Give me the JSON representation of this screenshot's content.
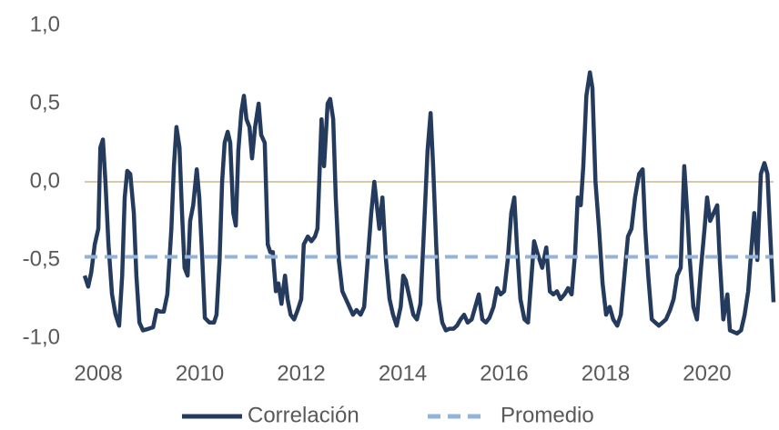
{
  "chart_data": {
    "type": "line",
    "xlim": [
      2007.73,
      2021.31
    ],
    "xticks": [
      2008,
      2010,
      2012,
      2014,
      2016,
      2018,
      2020
    ],
    "ylim": [
      -1,
      1
    ],
    "yticks": [
      {
        "value": -1,
        "label": "-1,0"
      },
      {
        "value": -0.5,
        "label": "-0,5"
      },
      {
        "value": 0,
        "label": "0,0"
      },
      {
        "value": 0.5,
        "label": "0,5"
      },
      {
        "value": 1,
        "label": "1,0"
      }
    ],
    "grid": false,
    "zero_line_color": "#c8b98c",
    "legend": "bottom",
    "series": [
      {
        "name": "Correlación",
        "color": "#243b5e",
        "dashed": false,
        "x": [
          2007.73,
          2007.8,
          2007.86,
          2007.93,
          2008.0,
          2008.04,
          2008.09,
          2008.14,
          2008.2,
          2008.27,
          2008.34,
          2008.41,
          2008.47,
          2008.52,
          2008.57,
          2008.63,
          2008.7,
          2008.75,
          2008.81,
          2008.88,
          2008.99,
          2009.08,
          2009.15,
          2009.22,
          2009.29,
          2009.36,
          2009.44,
          2009.49,
          2009.54,
          2009.6,
          2009.65,
          2009.7,
          2009.76,
          2009.81,
          2009.87,
          2009.94,
          2009.99,
          2010.05,
          2010.1,
          2010.19,
          2010.28,
          2010.33,
          2010.39,
          2010.44,
          2010.49,
          2010.55,
          2010.6,
          2010.66,
          2010.71,
          2010.76,
          2010.82,
          2010.87,
          2010.92,
          2010.98,
          2011.03,
          2011.09,
          2011.16,
          2011.21,
          2011.28,
          2011.34,
          2011.39,
          2011.44,
          2011.5,
          2011.55,
          2011.61,
          2011.68,
          2011.73,
          2011.79,
          2011.86,
          2011.93,
          2012.0,
          2012.05,
          2012.13,
          2012.2,
          2012.27,
          2012.32,
          2012.4,
          2012.45,
          2012.52,
          2012.57,
          2012.63,
          2012.68,
          2012.74,
          2012.81,
          2012.88,
          2012.95,
          2013.02,
          2013.09,
          2013.17,
          2013.24,
          2013.31,
          2013.38,
          2013.44,
          2013.49,
          2013.54,
          2013.6,
          2013.67,
          2013.74,
          2013.81,
          2013.88,
          2013.96,
          2014.01,
          2014.06,
          2014.14,
          2014.21,
          2014.28,
          2014.35,
          2014.42,
          2014.49,
          2014.55,
          2014.6,
          2014.66,
          2014.71,
          2014.78,
          2014.85,
          2014.92,
          2015.0,
          2015.07,
          2015.14,
          2015.21,
          2015.28,
          2015.36,
          2015.43,
          2015.5,
          2015.57,
          2015.64,
          2015.71,
          2015.79,
          2015.86,
          2015.93,
          2016.0,
          2016.07,
          2016.14,
          2016.2,
          2016.25,
          2016.32,
          2016.4,
          2016.47,
          2016.54,
          2016.59,
          2016.65,
          2016.7,
          2016.75,
          2016.83,
          2016.9,
          2016.97,
          2017.04,
          2017.11,
          2017.19,
          2017.26,
          2017.33,
          2017.4,
          2017.45,
          2017.51,
          2017.56,
          2017.62,
          2017.69,
          2017.74,
          2017.8,
          2017.87,
          2017.94,
          2018.01,
          2018.08,
          2018.15,
          2018.23,
          2018.3,
          2018.37,
          2018.44,
          2018.51,
          2018.58,
          2018.66,
          2018.73,
          2018.78,
          2018.84,
          2018.91,
          2018.98,
          2019.05,
          2019.12,
          2019.19,
          2019.27,
          2019.34,
          2019.41,
          2019.48,
          2019.55,
          2019.61,
          2019.66,
          2019.73,
          2019.8,
          2019.88,
          2019.95,
          2020.0,
          2020.06,
          2020.13,
          2020.2,
          2020.25,
          2020.32,
          2020.4,
          2020.45,
          2020.52,
          2020.59,
          2020.67,
          2020.74,
          2020.81,
          2020.88,
          2020.93,
          2020.99,
          2021.06,
          2021.13,
          2021.19,
          2021.24,
          2021.31
        ],
        "values": [
          -0.6,
          -0.67,
          -0.58,
          -0.4,
          -0.3,
          0.22,
          0.27,
          0.0,
          -0.4,
          -0.72,
          -0.85,
          -0.92,
          -0.6,
          -0.1,
          0.07,
          0.05,
          -0.2,
          -0.6,
          -0.9,
          -0.95,
          -0.94,
          -0.93,
          -0.82,
          -0.83,
          -0.83,
          -0.72,
          -0.3,
          0.1,
          0.35,
          0.22,
          -0.2,
          -0.55,
          -0.6,
          -0.25,
          -0.15,
          0.08,
          -0.1,
          -0.5,
          -0.87,
          -0.9,
          -0.9,
          -0.85,
          -0.5,
          0.0,
          0.25,
          0.32,
          0.25,
          -0.2,
          -0.28,
          0.2,
          0.45,
          0.55,
          0.4,
          0.35,
          0.15,
          0.35,
          0.5,
          0.3,
          0.25,
          -0.4,
          -0.45,
          -0.45,
          -0.7,
          -0.65,
          -0.78,
          -0.6,
          -0.75,
          -0.85,
          -0.88,
          -0.82,
          -0.75,
          -0.4,
          -0.35,
          -0.38,
          -0.35,
          -0.3,
          0.4,
          0.1,
          0.5,
          0.53,
          0.4,
          -0.1,
          -0.5,
          -0.7,
          -0.75,
          -0.8,
          -0.85,
          -0.82,
          -0.85,
          -0.8,
          -0.5,
          -0.2,
          0.0,
          -0.15,
          -0.3,
          -0.1,
          -0.5,
          -0.75,
          -0.85,
          -0.92,
          -0.8,
          -0.6,
          -0.63,
          -0.75,
          -0.85,
          -0.88,
          -0.78,
          -0.3,
          0.2,
          0.44,
          0.1,
          -0.4,
          -0.75,
          -0.9,
          -0.95,
          -0.94,
          -0.94,
          -0.92,
          -0.88,
          -0.85,
          -0.9,
          -0.88,
          -0.8,
          -0.72,
          -0.88,
          -0.9,
          -0.87,
          -0.8,
          -0.68,
          -0.72,
          -0.7,
          -0.5,
          -0.2,
          -0.1,
          -0.4,
          -0.75,
          -0.88,
          -0.9,
          -0.6,
          -0.38,
          -0.45,
          -0.5,
          -0.55,
          -0.42,
          -0.7,
          -0.72,
          -0.7,
          -0.75,
          -0.72,
          -0.68,
          -0.72,
          -0.45,
          -0.1,
          -0.15,
          0.1,
          0.55,
          0.7,
          0.6,
          0.0,
          -0.3,
          -0.65,
          -0.85,
          -0.8,
          -0.88,
          -0.92,
          -0.85,
          -0.6,
          -0.35,
          -0.3,
          -0.1,
          0.05,
          0.08,
          -0.3,
          -0.6,
          -0.88,
          -0.9,
          -0.92,
          -0.9,
          -0.88,
          -0.82,
          -0.75,
          -0.6,
          -0.55,
          0.1,
          -0.2,
          -0.5,
          -0.8,
          -0.88,
          -0.55,
          -0.3,
          -0.1,
          -0.25,
          -0.2,
          -0.15,
          -0.5,
          -0.88,
          -0.72,
          -0.95,
          -0.96,
          -0.97,
          -0.95,
          -0.85,
          -0.7,
          -0.4,
          -0.2,
          -0.5,
          0.05,
          0.12,
          0.05,
          -0.3,
          -0.77
        ]
      },
      {
        "name": "Promedio",
        "color": "#94b3d8",
        "dashed": true,
        "x": [
          2007.73,
          2021.31
        ],
        "values": [
          -0.48,
          -0.48
        ]
      }
    ]
  }
}
